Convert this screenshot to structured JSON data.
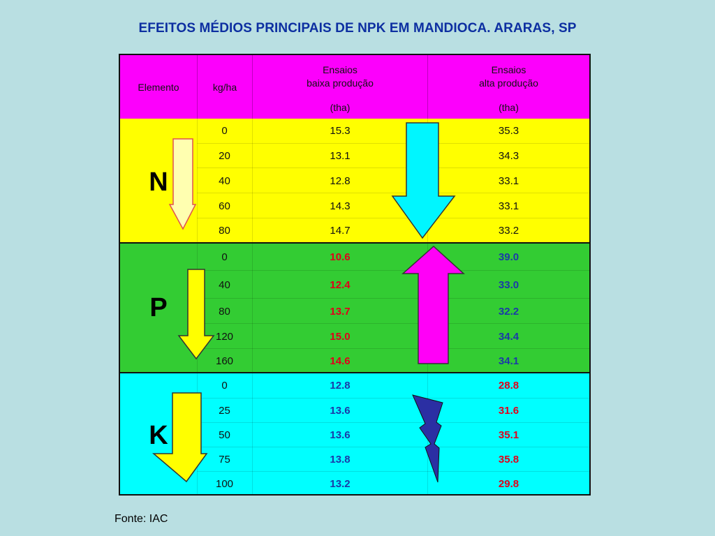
{
  "title": "EFEITOS MÉDIOS PRINCIPAIS DE NPK EM MANDIOCA. ARARAS, SP",
  "header": {
    "elemento": "Elemento",
    "kg": "kg/ha",
    "baixa_line1": "Ensaios",
    "baixa_line2": "baixa produção",
    "baixa_unit": "(tha)",
    "alta_line1": "Ensaios",
    "alta_line2": "alta produção",
    "alta_unit": "(tha)"
  },
  "sections": {
    "N": {
      "letter": "N",
      "color": "#ffff00",
      "rows": [
        {
          "kg": "0",
          "baixa": "15.3",
          "alta": "35.3"
        },
        {
          "kg": "20",
          "baixa": "13.1",
          "alta": "34.3"
        },
        {
          "kg": "40",
          "baixa": "12.8",
          "alta": "33.1"
        },
        {
          "kg": "60",
          "baixa": "14.3",
          "alta": "33.1"
        },
        {
          "kg": "80",
          "baixa": "14.7",
          "alta": "33.2"
        }
      ]
    },
    "P": {
      "letter": "P",
      "color": "#33cc33",
      "rows": [
        {
          "kg": "0",
          "baixa": "10.6",
          "alta": "39.0"
        },
        {
          "kg": "40",
          "baixa": "12.4",
          "alta": "33.0"
        },
        {
          "kg": "80",
          "baixa": "13.7",
          "alta": "32.2"
        },
        {
          "kg": "120",
          "baixa": "15.0",
          "alta": "34.4"
        },
        {
          "kg": "160",
          "baixa": "14.6",
          "alta": "34.1"
        }
      ]
    },
    "K": {
      "letter": "K",
      "color": "#00ffff",
      "rows": [
        {
          "kg": "0",
          "baixa": "12.8",
          "alta": "28.8"
        },
        {
          "kg": "25",
          "baixa": "13.6",
          "alta": "31.6"
        },
        {
          "kg": "50",
          "baixa": "13.6",
          "alta": "35.1"
        },
        {
          "kg": "75",
          "baixa": "13.8",
          "alta": "35.8"
        },
        {
          "kg": "100",
          "baixa": "13.2",
          "alta": "29.8"
        }
      ]
    }
  },
  "colors": {
    "title": "#0d2fa1",
    "header_bg": "#fc00fc",
    "red_value": "#e0001b",
    "blue_value": "#1b3aa8"
  },
  "fonte": "Fonte: IAC"
}
